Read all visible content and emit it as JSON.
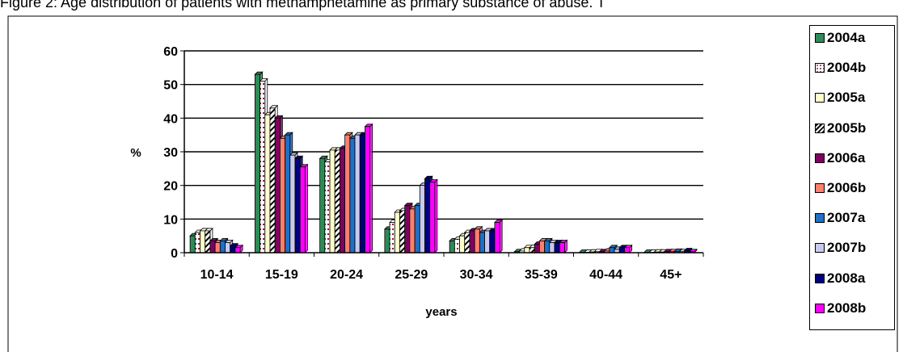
{
  "figure_title": "Figure 2: Age distribution of patients with methamphetamine as primary substance of abuse. T",
  "chart_data": {
    "type": "bar",
    "xlabel": "years",
    "ylabel": "%",
    "ylim": [
      0,
      60
    ],
    "yticks": [
      0,
      10,
      20,
      30,
      40,
      50,
      60
    ],
    "grid": true,
    "legend_position": "right",
    "categories": [
      "10-14",
      "15-19",
      "20-24",
      "25-29",
      "30-34",
      "35-39",
      "40-44",
      "45+"
    ],
    "series": [
      {
        "name": "2004a",
        "color": "#2e8b57",
        "pattern": "solid",
        "values": [
          5.0,
          53.0,
          28.0,
          7.0,
          3.5,
          0.3,
          0.1,
          0.1
        ]
      },
      {
        "name": "2004b",
        "color": "#ffffff",
        "pattern": "dotted",
        "values": [
          6.0,
          51.0,
          27.0,
          9.0,
          4.0,
          0.5,
          0.1,
          0.1
        ]
      },
      {
        "name": "2005a",
        "color": "#ffffcc",
        "pattern": "solid",
        "values": [
          6.5,
          41.0,
          30.5,
          12.0,
          5.0,
          1.5,
          0.2,
          0.2
        ]
      },
      {
        "name": "2005b",
        "color": "#ffffff",
        "pattern": "hatch",
        "values": [
          6.5,
          43.0,
          30.5,
          12.5,
          6.0,
          1.5,
          0.3,
          0.2
        ]
      },
      {
        "name": "2006a",
        "color": "#800060",
        "pattern": "solid",
        "values": [
          3.5,
          40.0,
          31.0,
          14.0,
          6.5,
          2.5,
          0.3,
          0.3
        ]
      },
      {
        "name": "2006b",
        "color": "#ff7f6e",
        "pattern": "solid",
        "values": [
          3.0,
          34.0,
          35.0,
          13.0,
          7.0,
          3.5,
          0.5,
          0.3
        ]
      },
      {
        "name": "2007a",
        "color": "#1f6fc5",
        "pattern": "solid",
        "values": [
          3.5,
          35.0,
          34.0,
          14.0,
          6.0,
          3.5,
          1.5,
          0.4
        ]
      },
      {
        "name": "2007b",
        "color": "#c9c9ee",
        "pattern": "solid",
        "values": [
          3.0,
          29.0,
          35.0,
          20.0,
          6.5,
          3.0,
          1.0,
          0.3
        ]
      },
      {
        "name": "2008a",
        "color": "#00007f",
        "pattern": "solid",
        "values": [
          2.0,
          28.0,
          35.0,
          22.0,
          6.5,
          3.0,
          1.5,
          0.6
        ]
      },
      {
        "name": "2008b",
        "color": "#ff00ff",
        "pattern": "solid",
        "values": [
          1.5,
          25.5,
          37.5,
          21.0,
          9.0,
          3.0,
          1.5,
          0.3
        ]
      }
    ]
  }
}
